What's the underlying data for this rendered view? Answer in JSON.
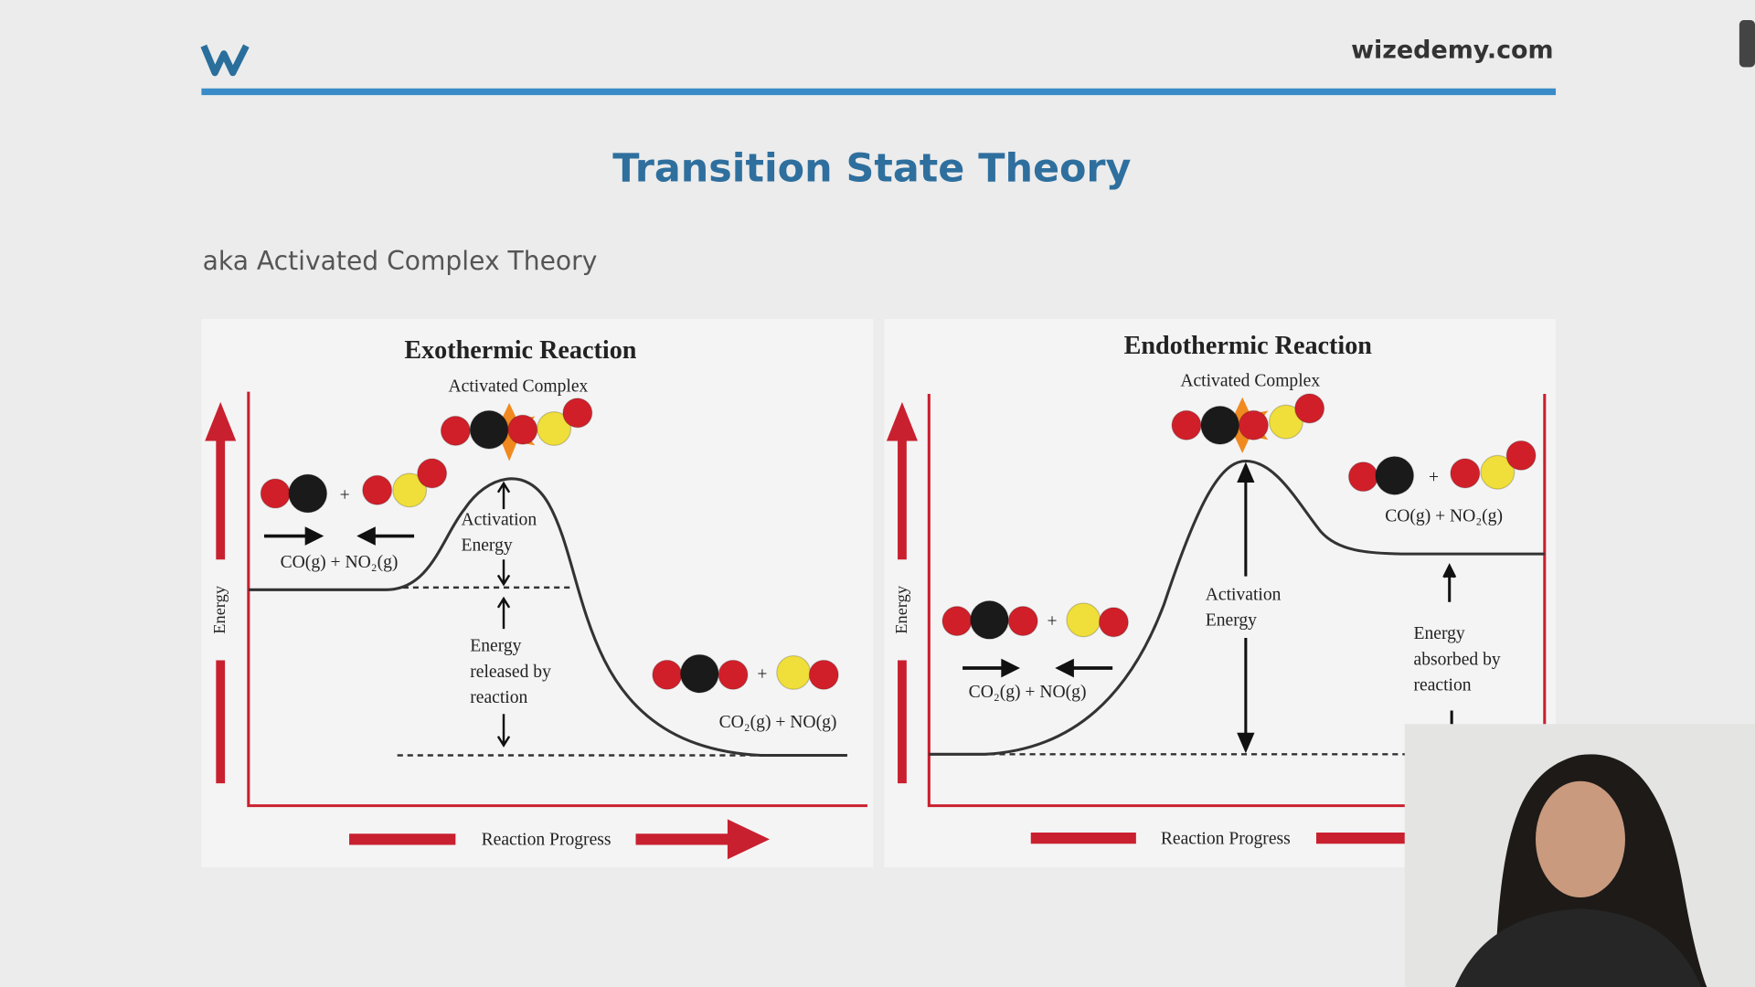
{
  "header": {
    "site": "wizedemy.com"
  },
  "slide": {
    "title": "Transition State Theory",
    "subtitle": "aka Activated Complex Theory"
  },
  "plus": "+",
  "diagrams": [
    {
      "title": "Exothermic Reaction",
      "complex_label": "Activated Complex",
      "reactants": "CO(g) + NO₂(g)",
      "products": "CO₂(g) + NO(g)",
      "activation": [
        "Activation",
        "Energy"
      ],
      "energy_change": [
        "Energy",
        "released by",
        "reaction"
      ],
      "y_axis": "Energy",
      "x_axis": "Reaction Progress"
    },
    {
      "title": "Endothermic Reaction",
      "complex_label": "Activated Complex",
      "reactants": "CO₂(g) + NO(g)",
      "products": "CO(g) + NO₂(g)",
      "activation": [
        "Activation",
        "Energy"
      ],
      "energy_change": [
        "Energy",
        "absorbed by",
        "reaction"
      ],
      "y_axis": "Energy",
      "x_axis": "Reaction Progress"
    }
  ]
}
